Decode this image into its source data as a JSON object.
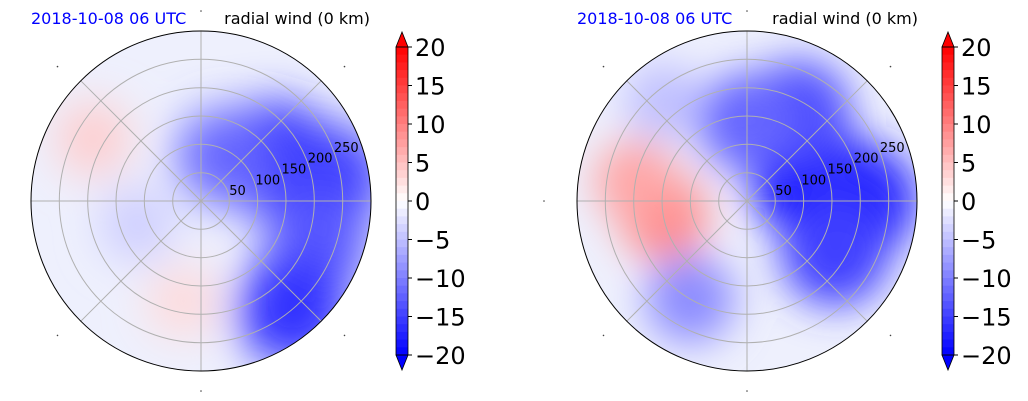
{
  "panels": [
    {
      "id": "left",
      "time_label": "2018-10-08 06 UTC",
      "variable_label": "radial wind (0 km)"
    },
    {
      "id": "right",
      "time_label": "2018-10-08 06 UTC",
      "variable_label": "radial wind (0 km)"
    }
  ],
  "colors": {
    "time_label": "#0000ff",
    "positive": "#ff0000",
    "negative": "#0000ff",
    "neutral": "#ffffff",
    "grid": "#b0b0b0"
  },
  "chart_data": [
    {
      "type": "heatmap",
      "projection": "polar",
      "title_left": "2018-10-08 06 UTC",
      "title_right": "radial wind (0 km)",
      "range_ring_labels": [
        "50",
        "100",
        "150",
        "200",
        "250"
      ],
      "range_rings": [
        50,
        100,
        150,
        200,
        250
      ],
      "colorbar": {
        "ticks": [
          20,
          15,
          10,
          5,
          0,
          -5,
          -10,
          -15,
          -20
        ],
        "tick_labels": [
          "20",
          "15",
          "10",
          "5",
          "0",
          "−5",
          "−10",
          "−15",
          "−20"
        ],
        "vmin": -20,
        "vmax": 20,
        "extend": "both",
        "colormap": "bwr"
      },
      "field_blobs": [
        {
          "angle_deg": 30,
          "range": 150,
          "value": -17
        },
        {
          "angle_deg": 10,
          "range": 230,
          "value": -15
        },
        {
          "angle_deg": -20,
          "range": 220,
          "value": -13
        },
        {
          "angle_deg": -50,
          "range": 250,
          "value": -16
        },
        {
          "angle_deg": 60,
          "range": 90,
          "value": -12
        },
        {
          "angle_deg": 150,
          "range": 220,
          "value": 4
        },
        {
          "angle_deg": -100,
          "range": 180,
          "value": 3
        },
        {
          "angle_deg": 200,
          "range": 120,
          "value": -4
        }
      ]
    },
    {
      "type": "heatmap",
      "projection": "polar",
      "title_left": "2018-10-08 06 UTC",
      "title_right": "radial wind (0 km)",
      "range_ring_labels": [
        "50",
        "100",
        "150",
        "200",
        "250"
      ],
      "range_rings": [
        50,
        100,
        150,
        200,
        250
      ],
      "colorbar": {
        "ticks": [
          20,
          15,
          10,
          5,
          0,
          -5,
          -10,
          -15,
          -20
        ],
        "tick_labels": [
          "20",
          "15",
          "10",
          "5",
          "0",
          "−5",
          "−10",
          "−15",
          "−20"
        ],
        "vmin": -20,
        "vmax": 20,
        "extend": "both",
        "colormap": "bwr"
      },
      "field_blobs": [
        {
          "angle_deg": 20,
          "range": 120,
          "value": -19
        },
        {
          "angle_deg": 0,
          "range": 200,
          "value": -17
        },
        {
          "angle_deg": -30,
          "range": 180,
          "value": -15
        },
        {
          "angle_deg": 60,
          "range": 180,
          "value": -14
        },
        {
          "angle_deg": 90,
          "range": 140,
          "value": -12
        },
        {
          "angle_deg": 190,
          "range": 150,
          "value": 9
        },
        {
          "angle_deg": 170,
          "range": 200,
          "value": 7
        },
        {
          "angle_deg": -120,
          "range": 200,
          "value": -9
        },
        {
          "angle_deg": 130,
          "range": 230,
          "value": -5
        }
      ]
    }
  ]
}
